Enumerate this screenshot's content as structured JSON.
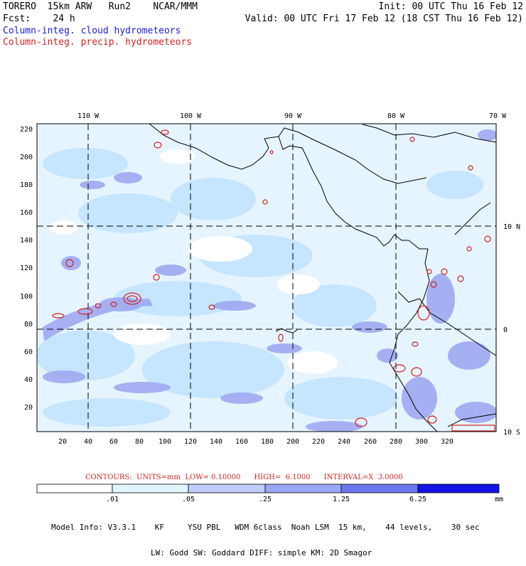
{
  "header": {
    "line1_left": "TORERO  15km ARW   Run2    NCAR/MMM",
    "line1_right": "Init: 00 UTC Thu 16 Feb 12",
    "line2_left": "Fcst:    24 h",
    "line2_right": "Valid: 00 UTC Fri 17 Feb 12 (18 CST Thu 16 Feb 12)",
    "field1": "Column-integ. cloud hydrometeors",
    "field2": "Column-integ. precip. hydrometeors"
  },
  "map": {
    "lon_labels": [
      "110 W",
      "100 W",
      "90 W",
      "80 W",
      "70 W"
    ],
    "lat_labels_right": [
      "10 N",
      "0",
      "10 S"
    ],
    "y_ticks": [
      "220",
      "200",
      "180",
      "160",
      "140",
      "120",
      "100",
      "80",
      "60",
      "40",
      "20"
    ],
    "x_ticks": [
      "20",
      "40",
      "60",
      "80",
      "100",
      "120",
      "140",
      "160",
      "180",
      "200",
      "220",
      "240",
      "260",
      "280",
      "300",
      "320"
    ],
    "colors": {
      "coast": "#000000",
      "cloud_light": "#dff1ff",
      "cloud_mid": "#c3e4ff",
      "cloud_blue": "#9aa8f4",
      "precip_contour": "#d42020"
    }
  },
  "contours_info": "CONTOURS:  UNITS=mm  LOW= 0.10000      HIGH=  6.1000      INTERVAL=X  3.0000",
  "legend": {
    "labels": [
      ".01",
      ".05",
      ".25",
      "1.25",
      "6.25"
    ],
    "unit": "mm",
    "colors": [
      "#ffffff",
      "#dff7ff",
      "#c0ccf8",
      "#9aa8f4",
      "#6c74ee",
      "#3d40ea",
      "#1414e6"
    ]
  },
  "model_info": {
    "line1": "Model Info: V3.3.1    KF     YSU PBL   WDM 6class  Noah LSM  15 km,    44 levels,    30 sec",
    "line2": "LW: Godd SW: Goddard DIFF: simple KM: 2D Smagor"
  }
}
